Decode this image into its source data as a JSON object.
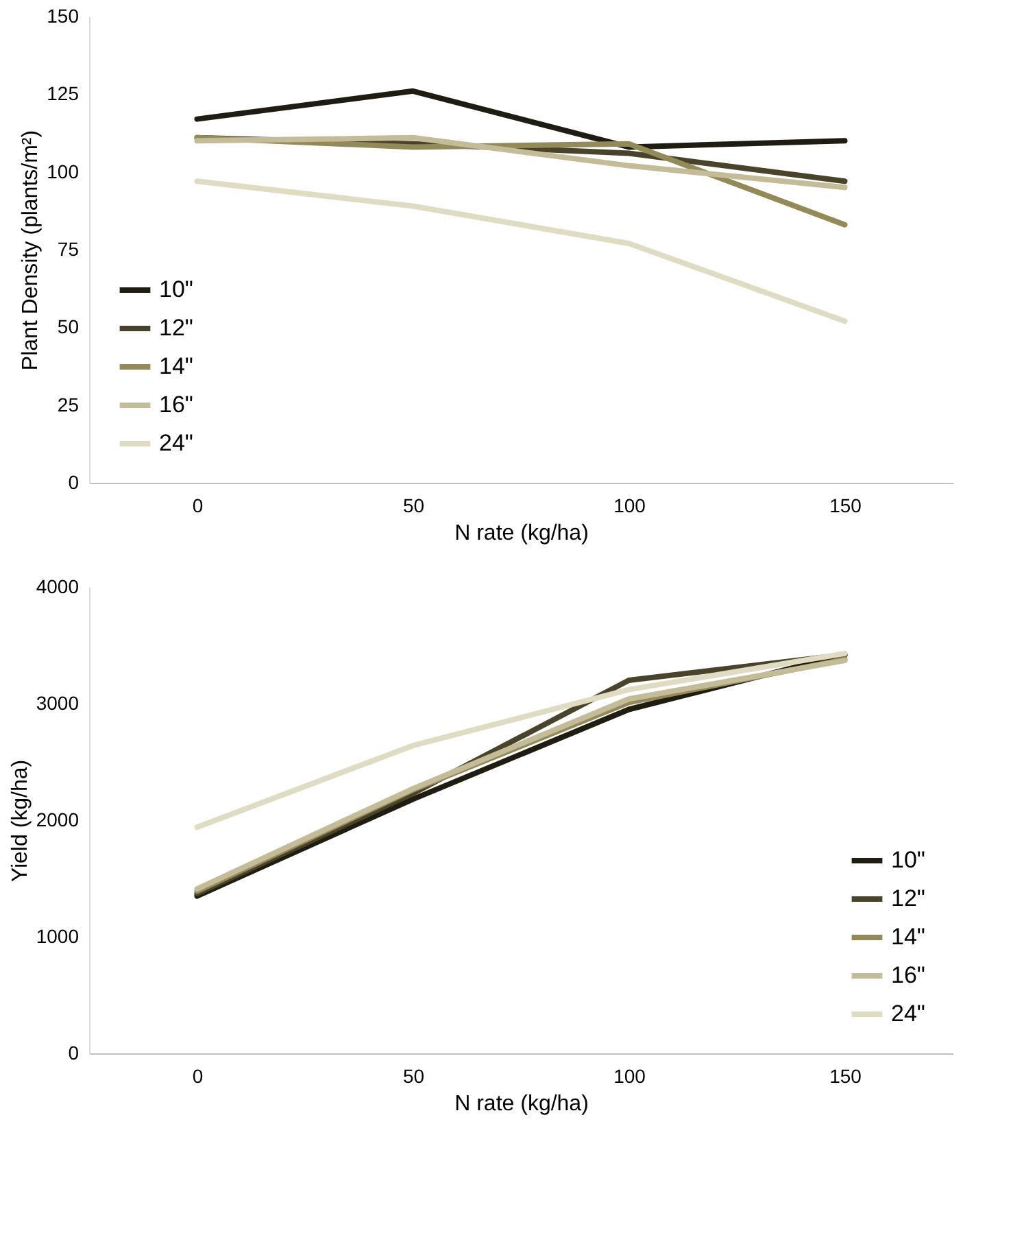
{
  "chart_data": [
    {
      "type": "line",
      "xlabel": "N rate (kg/ha)",
      "ylabel": "Plant Density (plants/m²)",
      "categories": [
        "0",
        "50",
        "100",
        "150"
      ],
      "ylim": [
        0,
        150
      ],
      "yticks": [
        0,
        25,
        50,
        75,
        100,
        125,
        150
      ],
      "grid": false,
      "legend": "bottom left",
      "line_style": "solid",
      "marker": "none",
      "series": [
        {
          "name": "10\"",
          "color": "#1f1d12",
          "values": [
            117,
            126,
            108,
            110
          ]
        },
        {
          "name": "12\"",
          "color": "#4a432c",
          "values": [
            111,
            109,
            106,
            97
          ]
        },
        {
          "name": "14\"",
          "color": "#948a58",
          "values": [
            111,
            108,
            109,
            83
          ]
        },
        {
          "name": "16\"",
          "color": "#c4bc98",
          "values": [
            110,
            111,
            102,
            95
          ]
        },
        {
          "name": "24\"",
          "color": "#e0dcc4",
          "values": [
            97,
            89,
            77,
            52
          ]
        }
      ]
    },
    {
      "type": "line",
      "xlabel": "N rate (kg/ha)",
      "ylabel": "Yield (kg/ha)",
      "categories": [
        "0",
        "50",
        "100",
        "150"
      ],
      "ylim": [
        0,
        4000
      ],
      "yticks": [
        0,
        1000,
        2000,
        3000,
        4000
      ],
      "grid": false,
      "legend": "bottom right",
      "line_style": "solid",
      "marker": "none",
      "series": [
        {
          "name": "10\"",
          "color": "#1f1d12",
          "values": [
            1350,
            2180,
            2950,
            3420
          ]
        },
        {
          "name": "12\"",
          "color": "#4a432c",
          "values": [
            1370,
            2230,
            3200,
            3420
          ]
        },
        {
          "name": "14\"",
          "color": "#948a58",
          "values": [
            1390,
            2260,
            3010,
            3380
          ]
        },
        {
          "name": "16\"",
          "color": "#c4bc98",
          "values": [
            1410,
            2270,
            3040,
            3370
          ]
        },
        {
          "name": "24\"",
          "color": "#e0dcc4",
          "values": [
            1940,
            2640,
            3120,
            3430
          ]
        }
      ]
    }
  ]
}
